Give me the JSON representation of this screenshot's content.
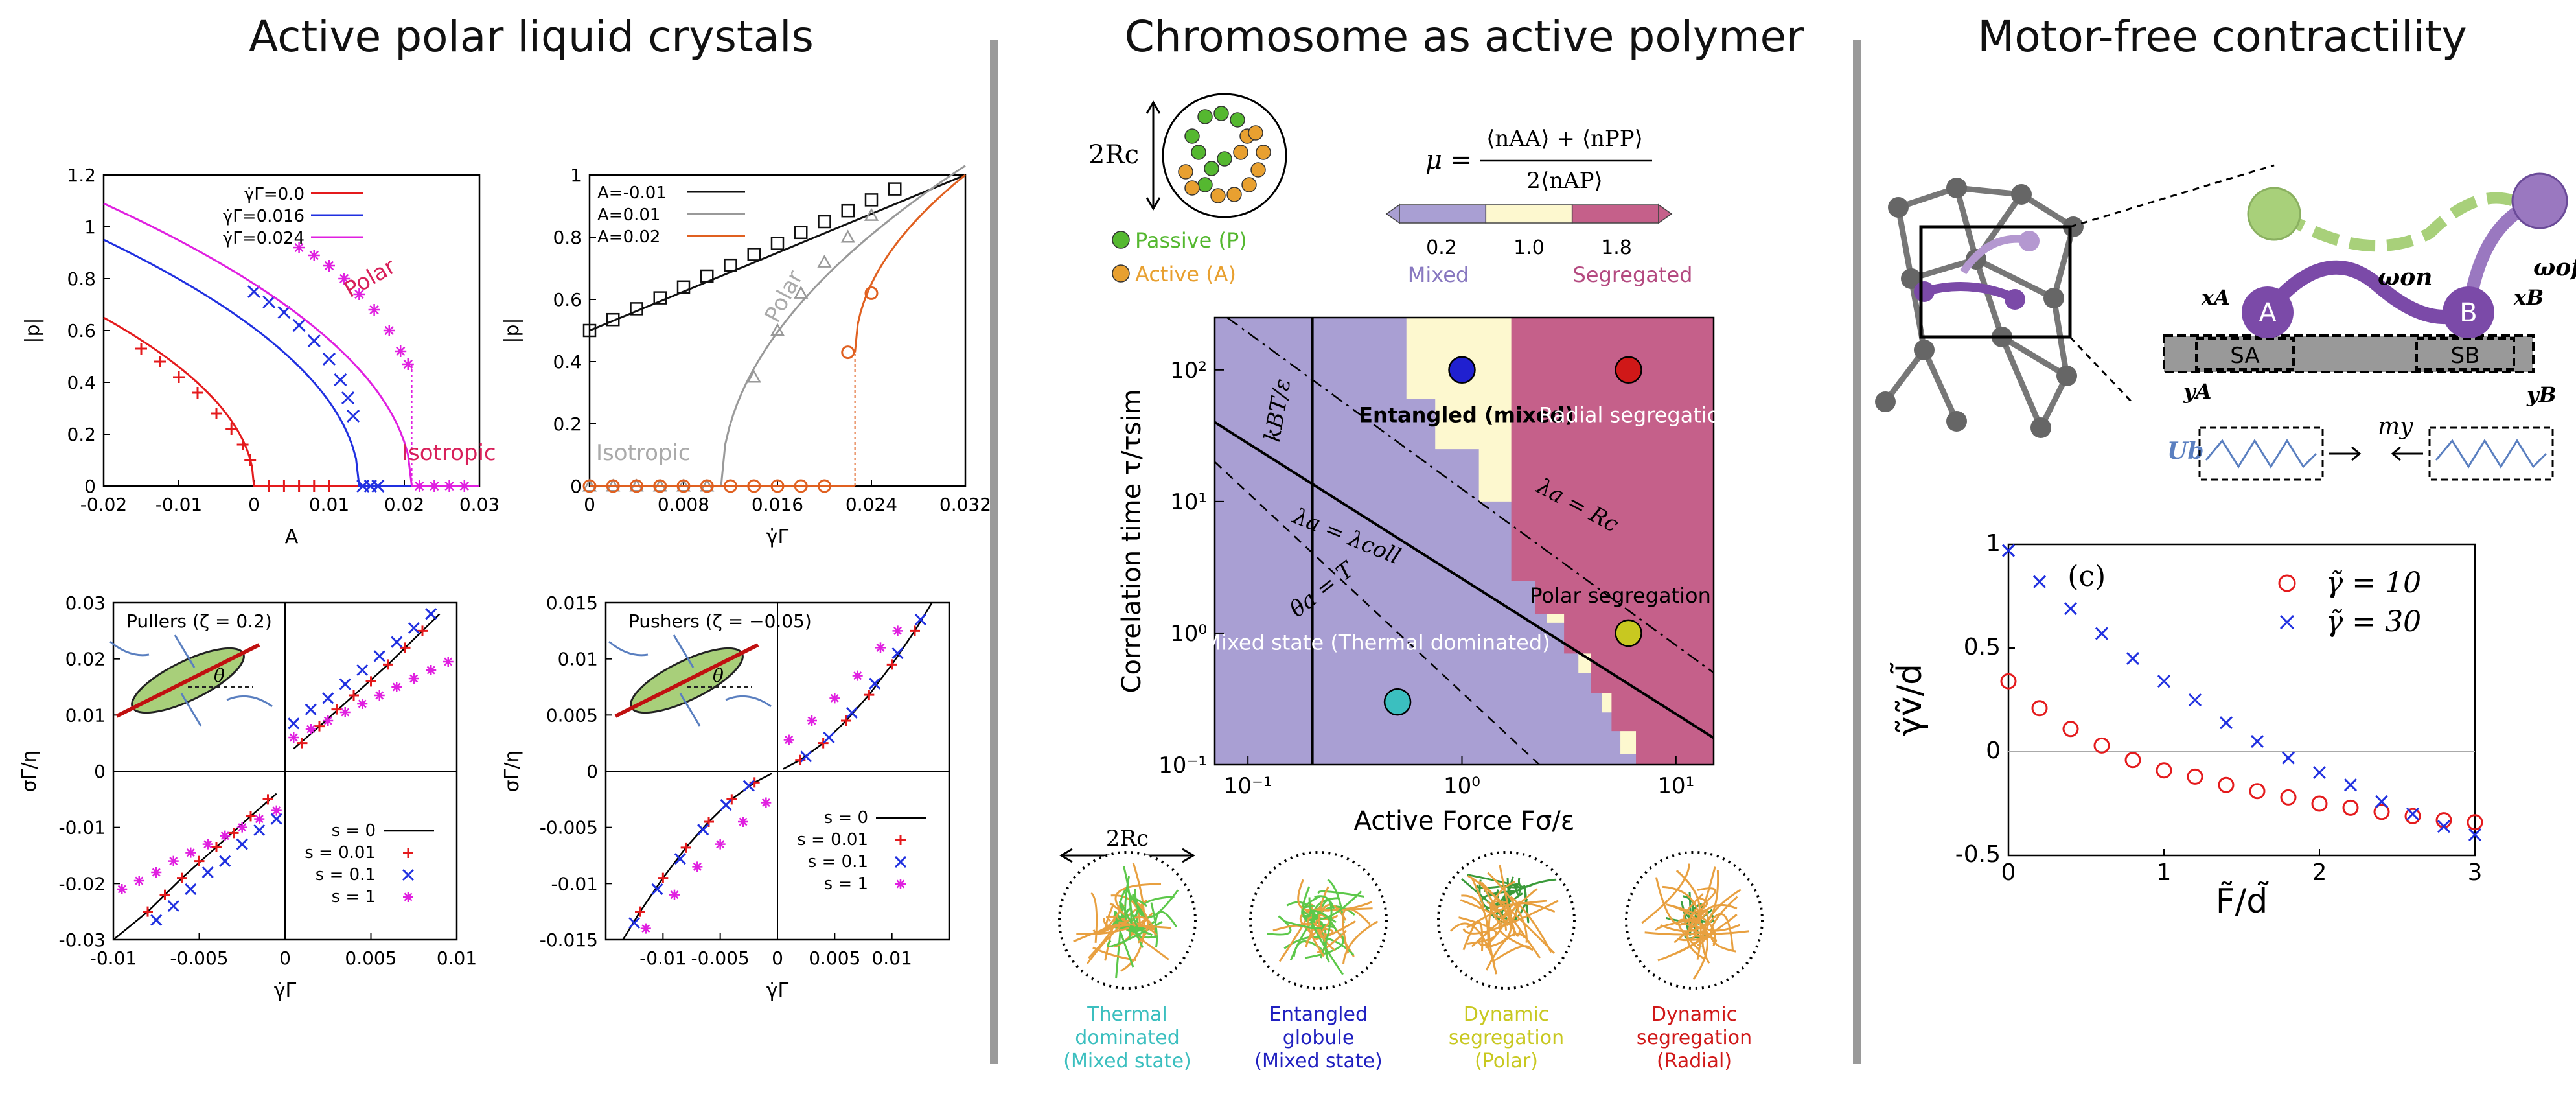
{
  "panel_titles": {
    "left": "Active polar liquid crystals",
    "middle": "Chromosome as active polymer",
    "right": "Motor-free contractility"
  },
  "chart_data": [
    {
      "id": "p-vs-A",
      "type": "line",
      "xlabel": "A",
      "ylabel": "|p|",
      "xlim": [
        -0.02,
        0.03
      ],
      "ylim": [
        0,
        1.2
      ],
      "xticks": [
        "-0.02",
        "-0.01",
        "0",
        "0.01",
        "0.02",
        "0.03"
      ],
      "yticks": [
        "0",
        "0.2",
        "0.4",
        "0.6",
        "0.8",
        "1",
        "1.2"
      ],
      "legend": [
        "γ̇Γ=0.0",
        "γ̇Γ=0.016",
        "γ̇Γ=0.024"
      ],
      "annotations": [
        "Polar",
        "Isotropic"
      ],
      "series": [
        {
          "name": "γ̇Γ=0.0",
          "color": "#e41a1c",
          "A_c": 0.0,
          "p0": 0.65,
          "x": [
            -0.015,
            -0.0125,
            -0.01,
            -0.0075,
            -0.005,
            -0.003,
            -0.0015,
            -0.0005,
            0.002,
            0.004,
            0.006,
            0.008,
            0.01
          ],
          "y": [
            0.53,
            0.48,
            0.42,
            0.36,
            0.28,
            0.22,
            0.16,
            0.1,
            0,
            0,
            0,
            0,
            0
          ]
        },
        {
          "name": "γ̇Γ=0.016",
          "color": "#2030e0",
          "A_c": 0.014,
          "p0": 0.95,
          "x": [
            0.0,
            0.002,
            0.004,
            0.006,
            0.008,
            0.01,
            0.0115,
            0.0125,
            0.0132,
            0.0145,
            0.0155,
            0.0165
          ],
          "y": [
            0.75,
            0.71,
            0.67,
            0.62,
            0.56,
            0.49,
            0.41,
            0.34,
            0.27,
            0,
            0,
            0
          ]
        },
        {
          "name": "γ̇Γ=0.024",
          "color": "#e020e0",
          "A_c": 0.021,
          "p0": 1.09,
          "x": [
            0.006,
            0.008,
            0.01,
            0.012,
            0.014,
            0.016,
            0.018,
            0.0195,
            0.0205,
            0.022,
            0.024,
            0.026,
            0.028
          ],
          "y": [
            0.92,
            0.89,
            0.85,
            0.8,
            0.74,
            0.68,
            0.6,
            0.52,
            0.47,
            0,
            0,
            0,
            0
          ]
        }
      ]
    },
    {
      "id": "p-vs-gamma",
      "type": "line",
      "xlabel": "γ̇Γ",
      "ylabel": "|p|",
      "xlim": [
        0,
        0.032
      ],
      "ylim": [
        0,
        1
      ],
      "xticks": [
        "0",
        "0.008",
        "0.016",
        "0.024",
        "0.032"
      ],
      "yticks": [
        "0",
        "0.2",
        "0.4",
        "0.6",
        "0.8",
        "1"
      ],
      "legend": [
        "A=-0.01",
        "A=0.01",
        "A=0.02"
      ],
      "annotations": [
        "Polar",
        "Isotropic"
      ],
      "series": [
        {
          "name": "A=-0.01",
          "color": "#111111",
          "x": [
            0,
            0.002,
            0.004,
            0.006,
            0.008,
            0.01,
            0.012,
            0.014,
            0.016,
            0.018,
            0.02,
            0.022,
            0.024,
            0.026
          ],
          "y": [
            0.5,
            0.535,
            0.57,
            0.605,
            0.64,
            0.675,
            0.71,
            0.745,
            0.78,
            0.815,
            0.85,
            0.885,
            0.92,
            0.955
          ]
        },
        {
          "name": "A=0.01",
          "color": "#999999",
          "x": [
            0,
            0.002,
            0.004,
            0.006,
            0.008,
            0.01,
            0.014,
            0.016,
            0.018,
            0.02,
            0.022,
            0.024
          ],
          "y": [
            0,
            0,
            0,
            0,
            0,
            0,
            0.35,
            0.5,
            0.62,
            0.72,
            0.8,
            0.87
          ]
        },
        {
          "name": "A=0.02",
          "color": "#e06020",
          "x": [
            0,
            0.002,
            0.004,
            0.006,
            0.008,
            0.01,
            0.012,
            0.014,
            0.016,
            0.018,
            0.02,
            0.022,
            0.024
          ],
          "y": [
            0,
            0,
            0,
            0,
            0,
            0,
            0,
            0,
            0,
            0,
            0,
            0.43,
            0.62
          ]
        }
      ]
    },
    {
      "id": "stress-pullers",
      "type": "line",
      "xlabel": "γ̇Γ",
      "ylabel": "σΓ/η",
      "xlim": [
        -0.01,
        0.01
      ],
      "ylim": [
        -0.03,
        0.03
      ],
      "xticks": [
        "-0.01",
        "-0.005",
        "0",
        "0.005",
        "0.01"
      ],
      "yticks": [
        "-0.03",
        "-0.02",
        "-0.01",
        "0",
        "0.01",
        "0.02",
        "0.03"
      ],
      "inset_label": "Pullers (ζ = 0.2)",
      "legend": [
        "s = 0",
        "s = 0.01",
        "s = 0.1",
        "s = 1"
      ],
      "series": [
        {
          "name": "s = 0",
          "color": "#111111",
          "x": [
            -0.01,
            -0.008,
            -0.006,
            -0.004,
            -0.002,
            -0.0005,
            0.0005,
            0.002,
            0.004,
            0.006,
            0.008,
            0.009
          ],
          "y": [
            -0.03,
            -0.025,
            -0.019,
            -0.0135,
            -0.008,
            -0.004,
            0.004,
            0.008,
            0.0135,
            0.019,
            0.025,
            0.028
          ]
        },
        {
          "name": "s = 0.01",
          "color": "#e41a1c",
          "x": [
            -0.008,
            -0.007,
            -0.006,
            -0.005,
            -0.004,
            -0.003,
            -0.002,
            -0.001,
            0.001,
            0.002,
            0.003,
            0.004,
            0.005,
            0.006,
            0.007,
            0.008
          ],
          "y": [
            -0.025,
            -0.022,
            -0.019,
            -0.016,
            -0.0135,
            -0.011,
            -0.008,
            -0.005,
            0.005,
            0.008,
            0.011,
            0.0135,
            0.016,
            0.019,
            0.022,
            0.025
          ]
        },
        {
          "name": "s = 0.1",
          "color": "#2030e0",
          "x": [
            -0.0075,
            -0.0065,
            -0.0055,
            -0.0045,
            -0.0035,
            -0.0025,
            -0.0015,
            -0.0005,
            0.0005,
            0.0015,
            0.0025,
            0.0035,
            0.0045,
            0.0055,
            0.0065,
            0.0075,
            0.0085
          ],
          "y": [
            -0.0265,
            -0.024,
            -0.021,
            -0.018,
            -0.016,
            -0.013,
            -0.0105,
            -0.0085,
            0.0085,
            0.011,
            0.013,
            0.0155,
            0.018,
            0.0205,
            0.023,
            0.0255,
            0.028
          ]
        },
        {
          "name": "s = 1",
          "color": "#e020e0",
          "x": [
            -0.0095,
            -0.0085,
            -0.0075,
            -0.0065,
            -0.0055,
            -0.0045,
            -0.0035,
            -0.0025,
            -0.0015,
            -0.0005,
            0.0005,
            0.0015,
            0.0025,
            0.0035,
            0.0045,
            0.0055,
            0.0065,
            0.0075,
            0.0085,
            0.0095
          ],
          "y": [
            -0.021,
            -0.0195,
            -0.018,
            -0.016,
            -0.0145,
            -0.013,
            -0.0115,
            -0.01,
            -0.0085,
            -0.007,
            0.006,
            0.0075,
            0.009,
            0.0105,
            0.012,
            0.0135,
            0.015,
            0.0165,
            0.018,
            0.0195
          ]
        }
      ]
    },
    {
      "id": "stress-pushers",
      "type": "line",
      "xlabel": "γ̇Γ",
      "ylabel": "σΓ/η",
      "xlim": [
        -0.015,
        0.015
      ],
      "ylim": [
        -0.015,
        0.015
      ],
      "xticks": [
        "-0.01",
        "-0.005",
        "0",
        "0.005",
        "0.01"
      ],
      "yticks": [
        "-0.015",
        "-0.01",
        "-0.005",
        "0",
        "0.005",
        "0.01",
        "0.015"
      ],
      "inset_label": "Pushers (ζ = −0.05)",
      "legend": [
        "s = 0",
        "s = 0.01",
        "s = 0.1",
        "s = 1"
      ],
      "series": [
        {
          "name": "s = 0",
          "color": "#111111",
          "x": [
            -0.0135,
            -0.012,
            -0.01,
            -0.008,
            -0.006,
            -0.004,
            -0.002,
            -0.0005,
            0.0005,
            0.002,
            0.004,
            0.006,
            0.008,
            0.01,
            0.012,
            0.0135
          ],
          "y": [
            -0.015,
            -0.0125,
            -0.0095,
            -0.0068,
            -0.0045,
            -0.0025,
            -0.001,
            -0.0002,
            0.0002,
            0.001,
            0.0025,
            0.0045,
            0.0068,
            0.0095,
            0.0125,
            0.015
          ]
        },
        {
          "name": "s = 0.01",
          "color": "#e41a1c",
          "x": [
            -0.012,
            -0.01,
            -0.008,
            -0.006,
            -0.004,
            -0.002,
            0.002,
            0.004,
            0.006,
            0.008,
            0.01,
            0.012
          ],
          "y": [
            -0.0125,
            -0.0095,
            -0.0068,
            -0.0045,
            -0.0025,
            -0.001,
            0.001,
            0.0025,
            0.0045,
            0.0068,
            0.0095,
            0.0125
          ]
        },
        {
          "name": "s = 0.1",
          "color": "#2030e0",
          "x": [
            -0.0125,
            -0.0105,
            -0.0085,
            -0.0065,
            -0.0045,
            -0.0025,
            0.0025,
            0.0045,
            0.0065,
            0.0085,
            0.0105,
            0.0125
          ],
          "y": [
            -0.0135,
            -0.0105,
            -0.0078,
            -0.0052,
            -0.003,
            -0.0013,
            0.0013,
            0.003,
            0.0052,
            0.0078,
            0.0105,
            0.0135
          ]
        },
        {
          "name": "s = 1",
          "color": "#e020e0",
          "x": [
            -0.0115,
            -0.009,
            -0.007,
            -0.005,
            -0.003,
            -0.001,
            0.001,
            0.003,
            0.005,
            0.007,
            0.009,
            0.0105
          ],
          "y": [
            -0.014,
            -0.011,
            -0.0085,
            -0.0065,
            -0.0045,
            -0.0028,
            0.0028,
            0.0045,
            0.0065,
            0.0085,
            0.011,
            0.0125
          ]
        }
      ]
    },
    {
      "id": "chromosome-phase-diagram",
      "type": "heatmap",
      "xlabel": "Active Force Fσ/ε",
      "ylabel": "Correlation time τ/τsim",
      "xscale": "log",
      "yscale": "log",
      "xlim": [
        0.07,
        15
      ],
      "ylim": [
        0.1,
        250
      ],
      "xticks": [
        "10⁻¹",
        "10⁰",
        "10¹"
      ],
      "yticks": [
        "10⁻¹",
        "10⁰",
        "10¹",
        "10²"
      ],
      "colorbar": {
        "label": "μ = (⟨nAA⟩ + ⟨nPP⟩) / 2⟨nAP⟩",
        "ticks": [
          "0.2",
          "1.0",
          "1.8"
        ],
        "left_label": "Mixed",
        "right_label": "Segregated",
        "colors": [
          "#a99fd3",
          "#fdf8cf",
          "#c5608a"
        ]
      },
      "regions": [
        "Mixed state (Thermal dominated)",
        "Entangled (mixed)",
        "Radial segregation",
        "Polar segregation"
      ],
      "lines": [
        "kBT/ε",
        "λa = λcoll",
        "θa = T",
        "λa = Rc"
      ],
      "points": [
        {
          "x": 0.5,
          "y": 0.3,
          "color": "#3bbfbf"
        },
        {
          "x": 1.0,
          "y": 100,
          "color": "#2020d0"
        },
        {
          "x": 6.0,
          "y": 1.0,
          "color": "#c8c820"
        },
        {
          "x": 6.0,
          "y": 100,
          "color": "#d01818"
        }
      ]
    },
    {
      "id": "velocity-vs-force",
      "type": "scatter",
      "xlabel": "F̃/d̃",
      "ylabel": "γ̃ṽ/d̃",
      "xlim": [
        0,
        3
      ],
      "ylim": [
        -0.5,
        1
      ],
      "xticks": [
        "0",
        "1",
        "2",
        "3"
      ],
      "yticks": [
        "-0.5",
        "0",
        "0.5",
        "1"
      ],
      "panel_label": "(c)",
      "series": [
        {
          "name": "γ̃ = 10",
          "color": "#e41a1c",
          "marker": "circle",
          "x": [
            0,
            0.2,
            0.4,
            0.6,
            0.8,
            1.0,
            1.2,
            1.4,
            1.6,
            1.8,
            2.0,
            2.2,
            2.4,
            2.6,
            2.8,
            3.0
          ],
          "y": [
            0.34,
            0.21,
            0.11,
            0.03,
            -0.04,
            -0.09,
            -0.12,
            -0.16,
            -0.19,
            -0.22,
            -0.25,
            -0.27,
            -0.29,
            -0.31,
            -0.33,
            -0.34
          ]
        },
        {
          "name": "γ̃ = 30",
          "color": "#2030e0",
          "marker": "x",
          "x": [
            0,
            0.2,
            0.4,
            0.6,
            0.8,
            1.0,
            1.2,
            1.4,
            1.6,
            1.8,
            2.0,
            2.2,
            2.4,
            2.6,
            2.8,
            3.0
          ],
          "y": [
            0.97,
            0.82,
            0.69,
            0.57,
            0.45,
            0.34,
            0.25,
            0.14,
            0.05,
            -0.03,
            -0.1,
            -0.16,
            -0.24,
            -0.3,
            -0.36,
            -0.4
          ]
        }
      ]
    }
  ],
  "chromosome_diagram": {
    "rc_label": "2Rc",
    "legend": [
      "Passive (P)",
      "Active (A)"
    ],
    "passive_color": "#55b830",
    "active_color": "#e8a030"
  },
  "snapshots": {
    "scale_label": "2Rc",
    "items": [
      {
        "label": "Thermal\ndominated\n(Mixed state)",
        "color": "#3bbfbf"
      },
      {
        "label": "Entangled\nglobule\n(Mixed state)",
        "color": "#2020c0"
      },
      {
        "label": "Dynamic\nsegregation\n(Polar)",
        "color": "#c8c820"
      },
      {
        "label": "Dynamic\nsegregation\n(Radial)",
        "color": "#d01818"
      }
    ]
  },
  "motor_diagram": {
    "labels": [
      "ωon",
      "ωoff",
      "xA",
      "xB",
      "yA",
      "yB",
      "SA",
      "SB",
      "my",
      "Ub",
      "A",
      "B"
    ],
    "purple": "#7b4aa8",
    "light_green": "#a8d07a"
  }
}
